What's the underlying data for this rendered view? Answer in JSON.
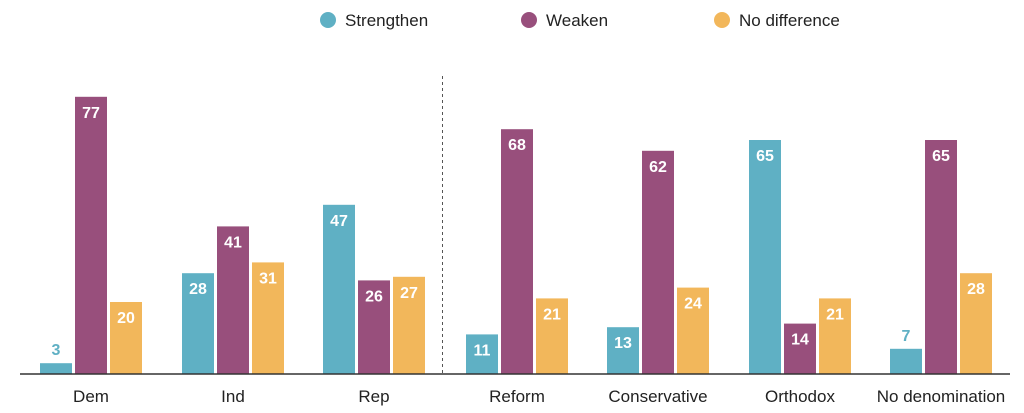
{
  "chart_data": {
    "type": "bar",
    "categories": [
      "Dem",
      "Ind",
      "Rep",
      "Reform",
      "Conservative",
      "Orthodox",
      "No denomination"
    ],
    "series": [
      {
        "name": "Strengthen",
        "color": "#5FB0C4",
        "values": [
          3,
          28,
          47,
          11,
          13,
          65,
          7
        ]
      },
      {
        "name": "Weaken",
        "color": "#984F7C",
        "values": [
          77,
          41,
          26,
          68,
          62,
          14,
          65
        ]
      },
      {
        "name": "No difference",
        "color": "#F2B75B",
        "values": [
          20,
          31,
          27,
          21,
          24,
          21,
          28
        ]
      }
    ],
    "ylim": [
      0,
      80
    ],
    "grid": false,
    "legend_position": "top-center",
    "divider_after_category": "Rep"
  }
}
